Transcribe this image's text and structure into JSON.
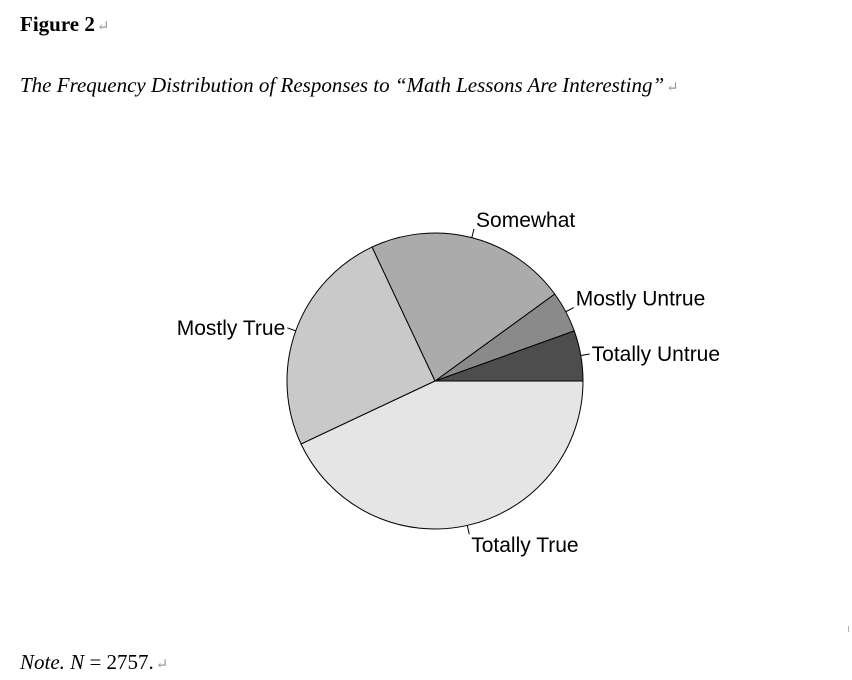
{
  "figure": {
    "number": "Figure 2",
    "caption": "The Frequency Distribution of Responses to “Math Lessons Are Interesting”",
    "paragraph_mark": "↵"
  },
  "note": {
    "prefix": "Note.",
    "n_symbol": "N",
    "n_text": " = 2757."
  },
  "chart_data": {
    "type": "pie",
    "title": "",
    "start_angle_deg": 0,
    "direction": "counterclockwise",
    "slices": [
      {
        "label": "Totally Untrue",
        "value": 5.5,
        "color": "#4d4d4d"
      },
      {
        "label": "Mostly Untrue",
        "value": 4.5,
        "color": "#8a8a8a"
      },
      {
        "label": "Somewhat",
        "value": 22.0,
        "color": "#ababab"
      },
      {
        "label": "Mostly True",
        "value": 25.0,
        "color": "#c9c9c9"
      },
      {
        "label": "Totally True",
        "value": 43.0,
        "color": "#e5e5e5"
      }
    ]
  }
}
